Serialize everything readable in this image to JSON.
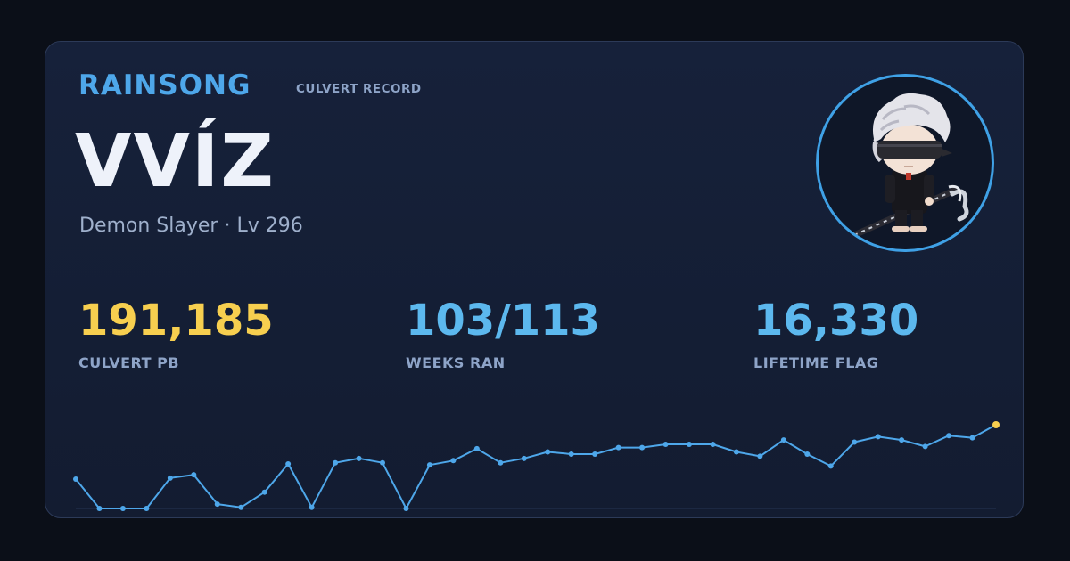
{
  "header": {
    "brand": "RAINSONG",
    "subtitle": "CULVERT RECORD"
  },
  "player": {
    "name": "VVÍZ",
    "class_level": "Demon Slayer · Lv 296"
  },
  "stats": [
    {
      "value": "191,185",
      "label": "CULVERT PB",
      "color": "#f7cf4f"
    },
    {
      "value": "103/113",
      "label": "WEEKS RAN",
      "color": "#5cb8ee"
    },
    {
      "value": "16,330",
      "label": "LIFETIME FLAG",
      "color": "#5cb8ee"
    }
  ],
  "colors": {
    "line": "#4ea7ea",
    "highlight": "#f7cf4f"
  },
  "icons": {
    "avatar": "character-avatar-icon"
  },
  "chart_data": {
    "type": "line",
    "series": [
      {
        "values": [
          101,
          74,
          74,
          74,
          102,
          105,
          78,
          75,
          89,
          115,
          75,
          116,
          120,
          116,
          74,
          114,
          118,
          129,
          116,
          120,
          126,
          124,
          124,
          130,
          130,
          133,
          133,
          133,
          126,
          122,
          137,
          124,
          113,
          135,
          140,
          137,
          131,
          141,
          139,
          151
        ]
      }
    ],
    "ylim": [
      74,
      151
    ]
  }
}
